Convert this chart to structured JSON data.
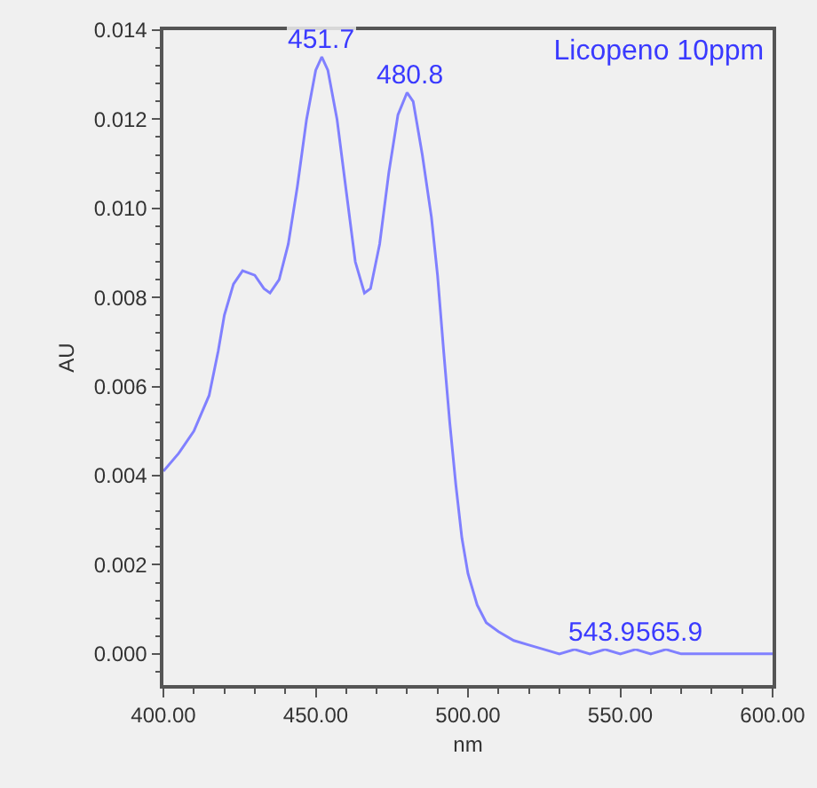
{
  "chart_data": {
    "type": "line",
    "title": "Licopeno 10ppm",
    "xlabel": "nm",
    "ylabel": "AU",
    "x": [
      400,
      405,
      410,
      415,
      418,
      420,
      423,
      426,
      430,
      433,
      435,
      438,
      441,
      444,
      447,
      450,
      452,
      454,
      457,
      460,
      463,
      466,
      468,
      471,
      474,
      477,
      480,
      482,
      485,
      488,
      490,
      492,
      494,
      496,
      498,
      500,
      503,
      506,
      510,
      515,
      520,
      525,
      530,
      535,
      540,
      545,
      550,
      555,
      560,
      565,
      570,
      580,
      590,
      600
    ],
    "series": [
      {
        "color": "#8080ff",
        "values": [
          0.0041,
          0.0045,
          0.005,
          0.0058,
          0.0068,
          0.0076,
          0.0083,
          0.0086,
          0.0085,
          0.0082,
          0.0081,
          0.0084,
          0.0092,
          0.0105,
          0.012,
          0.0131,
          0.0134,
          0.0131,
          0.012,
          0.0104,
          0.0088,
          0.0081,
          0.0082,
          0.0092,
          0.0108,
          0.0121,
          0.0126,
          0.0124,
          0.0112,
          0.0098,
          0.0085,
          0.0068,
          0.0052,
          0.0038,
          0.0026,
          0.0018,
          0.0011,
          0.0007,
          0.0005,
          0.0003,
          0.0002,
          0.0001,
          0,
          0.0001,
          0,
          0.0001,
          0,
          0.0001,
          0,
          0.0001,
          0,
          0,
          0,
          0
        ]
      }
    ],
    "xlim": [
      400,
      600
    ],
    "ylim": [
      -0.0007,
      0.014
    ],
    "xticks": [
      {
        "value": 400,
        "label": "400.00"
      },
      {
        "value": 450,
        "label": "450.00"
      },
      {
        "value": 500,
        "label": "500.00"
      },
      {
        "value": 550,
        "label": "550.00"
      },
      {
        "value": 600,
        "label": "600.00"
      }
    ],
    "yticks": [
      {
        "value": 0,
        "label": "0.000"
      },
      {
        "value": 0.002,
        "label": "0.002"
      },
      {
        "value": 0.004,
        "label": "0.004"
      },
      {
        "value": 0.006,
        "label": "0.006"
      },
      {
        "value": 0.008,
        "label": "0.008"
      },
      {
        "value": 0.01,
        "label": "0.010"
      },
      {
        "value": 0.012,
        "label": "0.012"
      },
      {
        "value": 0.014,
        "label": "0.014"
      }
    ],
    "annotations": [
      {
        "text": "451.7",
        "x": 451.7,
        "y": 0.0134
      },
      {
        "text": "480.8",
        "x": 480.8,
        "y": 0.0126
      },
      {
        "text": "543.9",
        "x": 543.9,
        "y": 0.0001
      },
      {
        "text": "565.9",
        "x": 565.9,
        "y": 0.0001
      }
    ],
    "grid": false,
    "marker": "none",
    "line_style": "solid"
  }
}
